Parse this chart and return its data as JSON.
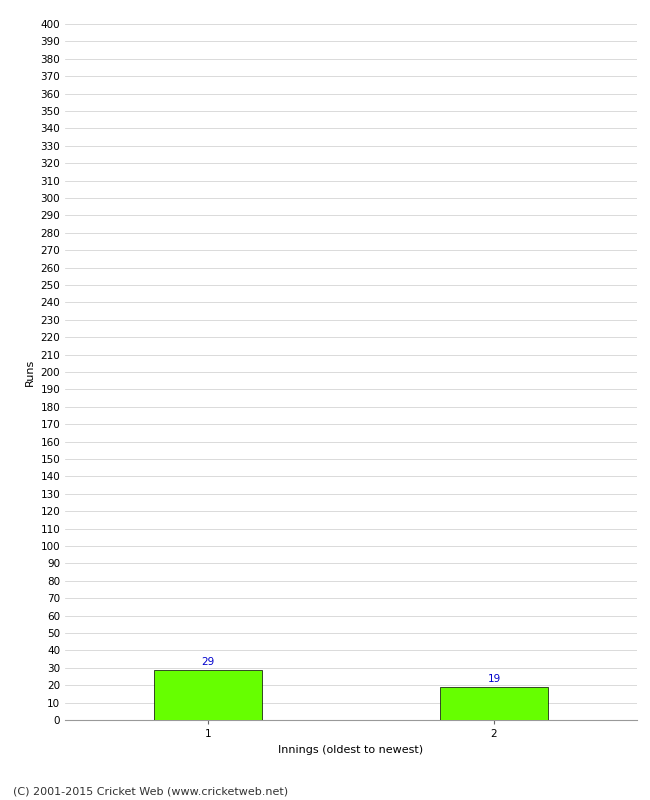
{
  "categories": [
    "1",
    "2"
  ],
  "values": [
    29,
    19
  ],
  "bar_color": "#66ff00",
  "bar_edge_color": "#000000",
  "bar_edge_width": 0.5,
  "ylabel": "Runs",
  "xlabel": "Innings (oldest to newest)",
  "ylim": [
    0,
    400
  ],
  "ytick_step": 10,
  "value_label_color": "#0000cc",
  "value_label_fontsize": 7.5,
  "axis_label_fontsize": 8,
  "tick_label_fontsize": 7.5,
  "footer_text": "(C) 2001-2015 Cricket Web (www.cricketweb.net)",
  "footer_fontsize": 8,
  "background_color": "#ffffff",
  "grid_color": "#cccccc",
  "bar_width": 0.38
}
